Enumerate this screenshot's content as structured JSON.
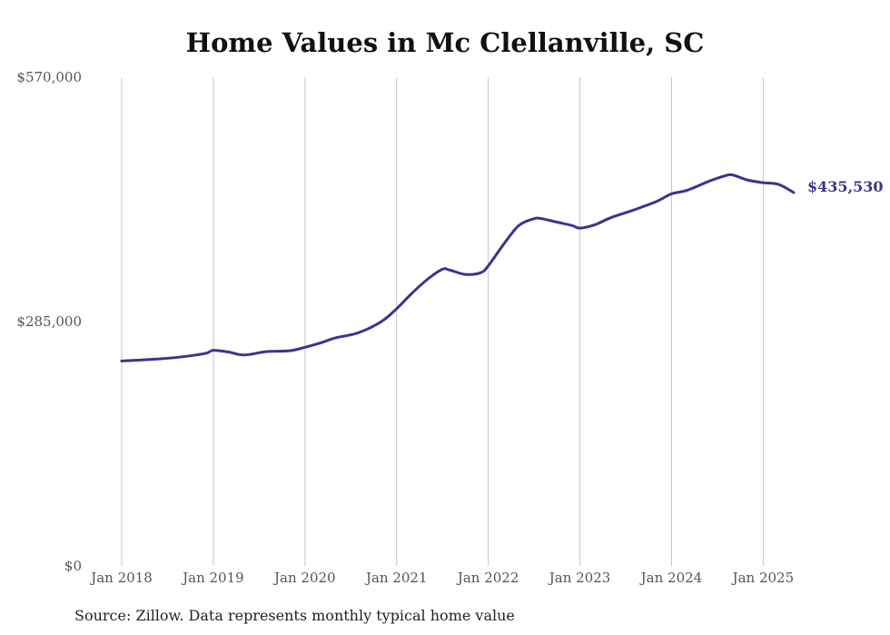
{
  "chart_data": {
    "type": "line",
    "title": "Home Values in Mc Clellanville, SC",
    "xlabel": "",
    "ylabel": "",
    "x_ticks": [
      "Jan 2018",
      "Jan 2019",
      "Jan 2020",
      "Jan 2021",
      "Jan 2022",
      "Jan 2023",
      "Jan 2024",
      "Jan 2025"
    ],
    "y_ticks": [
      "$0",
      "$285,000",
      "$570,000"
    ],
    "ylim": [
      0,
      570000
    ],
    "xlim": [
      "2017-12",
      "2025-08"
    ],
    "grid": "vertical",
    "line_color": "#3d348b",
    "end_label": "$435,530",
    "series": [
      {
        "x": [
          "2018-01",
          "2018-03",
          "2018-06",
          "2018-09",
          "2018-12",
          "2019-01",
          "2019-03",
          "2019-05",
          "2019-08",
          "2019-11",
          "2020-01",
          "2020-03",
          "2020-05",
          "2020-08",
          "2020-11",
          "2021-01",
          "2021-03",
          "2021-05",
          "2021-07",
          "2021-08",
          "2021-10",
          "2021-12",
          "2022-01",
          "2022-03",
          "2022-05",
          "2022-07",
          "2022-08",
          "2022-10",
          "2022-12",
          "2023-01",
          "2023-03",
          "2023-05",
          "2023-08",
          "2023-11",
          "2024-01",
          "2024-03",
          "2024-06",
          "2024-08",
          "2024-09",
          "2024-11",
          "2025-01",
          "2025-03",
          "2025-05"
        ],
        "values": [
          239000,
          240000,
          241500,
          244000,
          248000,
          251500,
          249500,
          246000,
          250000,
          251000,
          255000,
          260000,
          266000,
          272000,
          285000,
          300000,
          318000,
          334000,
          346000,
          345000,
          340000,
          342000,
          350000,
          375000,
          397000,
          405000,
          405000,
          401000,
          397000,
          394000,
          398000,
          406000,
          415000,
          425000,
          434000,
          438000,
          449000,
          455000,
          456000,
          450000,
          447000,
          445000,
          435530
        ]
      }
    ]
  },
  "source": "Source: Zillow. Data represents monthly typical home value"
}
